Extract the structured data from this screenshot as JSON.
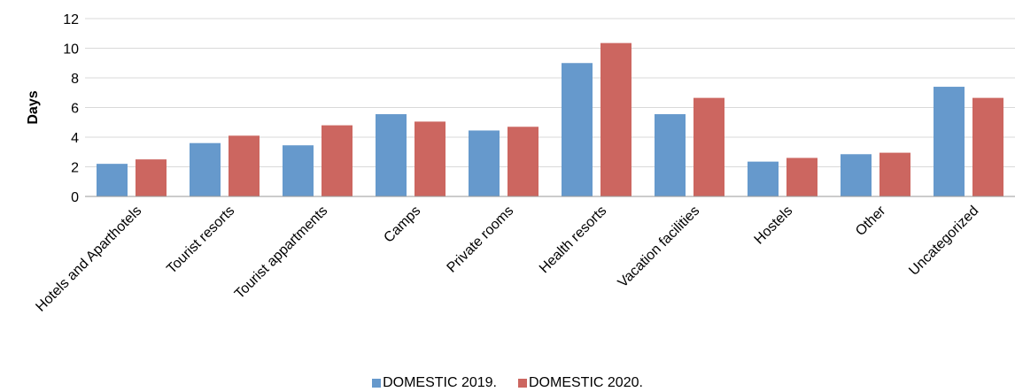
{
  "chart_data": {
    "type": "bar",
    "categories": [
      "Hotels and Aparthotels",
      "Tourist resorts",
      "Tourist appartments",
      "Camps",
      "Private rooms",
      "Health resorts",
      "Vacation facilities",
      "Hostels",
      "Other",
      "Uncategorized"
    ],
    "series": [
      {
        "name": "DOMESTIC 2019.",
        "color": "#6699CC",
        "values": [
          2.2,
          3.6,
          3.45,
          5.55,
          4.45,
          9.0,
          5.55,
          2.35,
          2.85,
          7.4
        ]
      },
      {
        "name": "DOMESTIC 2020.",
        "color": "#CC6660",
        "values": [
          2.5,
          4.1,
          4.8,
          5.05,
          4.7,
          10.35,
          6.65,
          2.6,
          2.95,
          6.65
        ]
      }
    ],
    "ylabel": "Days",
    "ylim": [
      0,
      12
    ],
    "yticks": [
      0,
      2,
      4,
      6,
      8,
      10,
      12
    ],
    "grid": true,
    "legend": "bottom"
  }
}
